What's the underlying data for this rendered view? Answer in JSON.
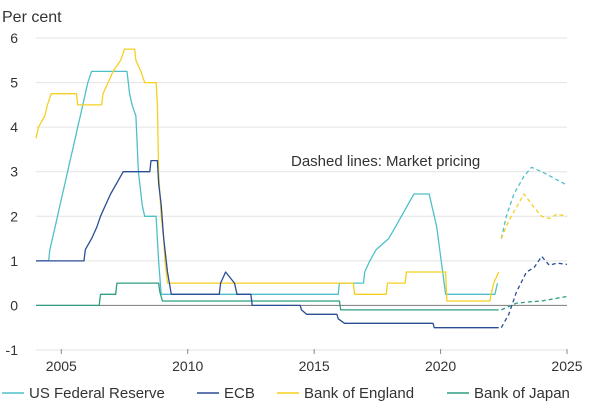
{
  "chart_data": {
    "type": "line",
    "ylabel": "Per cent",
    "annotation": "Dashed lines: Market pricing",
    "xlim": [
      2004,
      2025
    ],
    "ylim": [
      -1,
      6
    ],
    "xticks": [
      2005,
      2010,
      2015,
      2020,
      2025
    ],
    "yticks": [
      -1,
      0,
      1,
      2,
      3,
      4,
      5,
      6
    ],
    "grid": true,
    "legend_position": "bottom",
    "series": [
      {
        "name": "US Federal Reserve",
        "color": "#4fc0c8",
        "values": [
          [
            2004.0,
            1.0
          ],
          [
            2004.5,
            1.0
          ],
          [
            2004.55,
            1.25
          ],
          [
            2004.65,
            1.5
          ],
          [
            2004.75,
            1.75
          ],
          [
            2004.85,
            2.0
          ],
          [
            2004.95,
            2.25
          ],
          [
            2005.05,
            2.5
          ],
          [
            2005.15,
            2.75
          ],
          [
            2005.25,
            3.0
          ],
          [
            2005.35,
            3.25
          ],
          [
            2005.45,
            3.5
          ],
          [
            2005.55,
            3.75
          ],
          [
            2005.65,
            4.0
          ],
          [
            2005.75,
            4.25
          ],
          [
            2005.85,
            4.5
          ],
          [
            2005.95,
            4.75
          ],
          [
            2006.05,
            5.0
          ],
          [
            2006.2,
            5.25
          ],
          [
            2007.6,
            5.25
          ],
          [
            2007.7,
            4.75
          ],
          [
            2007.8,
            4.5
          ],
          [
            2007.95,
            4.25
          ],
          [
            2008.05,
            3.0
          ],
          [
            2008.2,
            2.25
          ],
          [
            2008.3,
            2.0
          ],
          [
            2008.75,
            2.0
          ],
          [
            2008.85,
            1.0
          ],
          [
            2008.95,
            0.25
          ],
          [
            2015.95,
            0.25
          ],
          [
            2016.0,
            0.5
          ],
          [
            2016.95,
            0.5
          ],
          [
            2017.0,
            0.75
          ],
          [
            2017.2,
            1.0
          ],
          [
            2017.45,
            1.25
          ],
          [
            2017.95,
            1.5
          ],
          [
            2018.2,
            1.75
          ],
          [
            2018.45,
            2.0
          ],
          [
            2018.7,
            2.25
          ],
          [
            2018.95,
            2.5
          ],
          [
            2019.55,
            2.5
          ],
          [
            2019.65,
            2.25
          ],
          [
            2019.75,
            2.0
          ],
          [
            2019.85,
            1.75
          ],
          [
            2020.2,
            0.25
          ],
          [
            2022.15,
            0.25
          ],
          [
            2022.25,
            0.5
          ]
        ],
        "market": [
          [
            2022.4,
            1.5
          ],
          [
            2022.6,
            2.0
          ],
          [
            2022.9,
            2.5
          ],
          [
            2023.3,
            2.9
          ],
          [
            2023.6,
            3.1
          ],
          [
            2024.0,
            3.0
          ],
          [
            2024.5,
            2.85
          ],
          [
            2025.0,
            2.7
          ]
        ]
      },
      {
        "name": "ECB",
        "color": "#2a4d96",
        "values": [
          [
            2004.0,
            1.0
          ],
          [
            2005.9,
            1.0
          ],
          [
            2005.95,
            1.25
          ],
          [
            2006.2,
            1.5
          ],
          [
            2006.4,
            1.75
          ],
          [
            2006.55,
            2.0
          ],
          [
            2006.75,
            2.25
          ],
          [
            2006.95,
            2.5
          ],
          [
            2007.2,
            2.75
          ],
          [
            2007.45,
            3.0
          ],
          [
            2008.5,
            3.0
          ],
          [
            2008.55,
            3.25
          ],
          [
            2008.8,
            3.25
          ],
          [
            2008.85,
            2.75
          ],
          [
            2008.95,
            2.25
          ],
          [
            2009.05,
            1.5
          ],
          [
            2009.2,
            0.75
          ],
          [
            2009.35,
            0.25
          ],
          [
            2011.25,
            0.25
          ],
          [
            2011.3,
            0.5
          ],
          [
            2011.5,
            0.75
          ],
          [
            2011.85,
            0.5
          ],
          [
            2011.95,
            0.25
          ],
          [
            2012.5,
            0.25
          ],
          [
            2012.55,
            0.0
          ],
          [
            2014.45,
            0.0
          ],
          [
            2014.5,
            -0.1
          ],
          [
            2014.7,
            -0.2
          ],
          [
            2015.9,
            -0.2
          ],
          [
            2015.95,
            -0.3
          ],
          [
            2016.2,
            -0.4
          ],
          [
            2019.7,
            -0.4
          ],
          [
            2019.75,
            -0.5
          ],
          [
            2022.3,
            -0.5
          ]
        ],
        "market": [
          [
            2022.4,
            -0.5
          ],
          [
            2022.7,
            -0.2
          ],
          [
            2023.0,
            0.3
          ],
          [
            2023.4,
            0.75
          ],
          [
            2023.7,
            0.85
          ],
          [
            2024.0,
            1.1
          ],
          [
            2024.3,
            0.9
          ],
          [
            2024.6,
            0.95
          ],
          [
            2025.0,
            0.92
          ]
        ]
      },
      {
        "name": "Bank of England",
        "color": "#f5d020",
        "values": [
          [
            2004.0,
            3.75
          ],
          [
            2004.1,
            4.0
          ],
          [
            2004.35,
            4.25
          ],
          [
            2004.45,
            4.5
          ],
          [
            2004.6,
            4.75
          ],
          [
            2005.6,
            4.75
          ],
          [
            2005.65,
            4.5
          ],
          [
            2006.6,
            4.5
          ],
          [
            2006.65,
            4.75
          ],
          [
            2006.85,
            5.0
          ],
          [
            2007.05,
            5.25
          ],
          [
            2007.35,
            5.5
          ],
          [
            2007.5,
            5.75
          ],
          [
            2007.9,
            5.75
          ],
          [
            2007.95,
            5.5
          ],
          [
            2008.15,
            5.25
          ],
          [
            2008.3,
            5.0
          ],
          [
            2008.75,
            5.0
          ],
          [
            2008.8,
            4.5
          ],
          [
            2008.85,
            3.0
          ],
          [
            2008.95,
            2.0
          ],
          [
            2009.05,
            1.5
          ],
          [
            2009.1,
            1.0
          ],
          [
            2009.2,
            0.5
          ],
          [
            2016.55,
            0.5
          ],
          [
            2016.6,
            0.25
          ],
          [
            2017.85,
            0.25
          ],
          [
            2017.9,
            0.5
          ],
          [
            2018.6,
            0.5
          ],
          [
            2018.65,
            0.75
          ],
          [
            2020.2,
            0.75
          ],
          [
            2020.25,
            0.1
          ],
          [
            2021.95,
            0.1
          ],
          [
            2022.0,
            0.25
          ],
          [
            2022.1,
            0.5
          ],
          [
            2022.3,
            0.75
          ]
        ],
        "market": [
          [
            2022.4,
            1.5
          ],
          [
            2022.7,
            1.9
          ],
          [
            2023.0,
            2.2
          ],
          [
            2023.3,
            2.5
          ],
          [
            2023.7,
            2.2
          ],
          [
            2024.0,
            2.0
          ],
          [
            2024.3,
            1.95
          ],
          [
            2024.6,
            2.05
          ],
          [
            2025.0,
            2.0
          ]
        ]
      },
      {
        "name": "Bank of Japan",
        "color": "#2f9e82",
        "values": [
          [
            2004.0,
            0.0
          ],
          [
            2006.5,
            0.0
          ],
          [
            2006.55,
            0.25
          ],
          [
            2007.15,
            0.25
          ],
          [
            2007.2,
            0.5
          ],
          [
            2008.85,
            0.5
          ],
          [
            2008.9,
            0.3
          ],
          [
            2009.0,
            0.1
          ],
          [
            2016.0,
            0.1
          ],
          [
            2016.05,
            -0.1
          ],
          [
            2022.3,
            -0.1
          ]
        ],
        "market": [
          [
            2022.4,
            -0.1
          ],
          [
            2023.0,
            0.05
          ],
          [
            2023.5,
            0.08
          ],
          [
            2024.0,
            0.1
          ],
          [
            2024.5,
            0.15
          ],
          [
            2025.0,
            0.2
          ]
        ]
      }
    ]
  }
}
